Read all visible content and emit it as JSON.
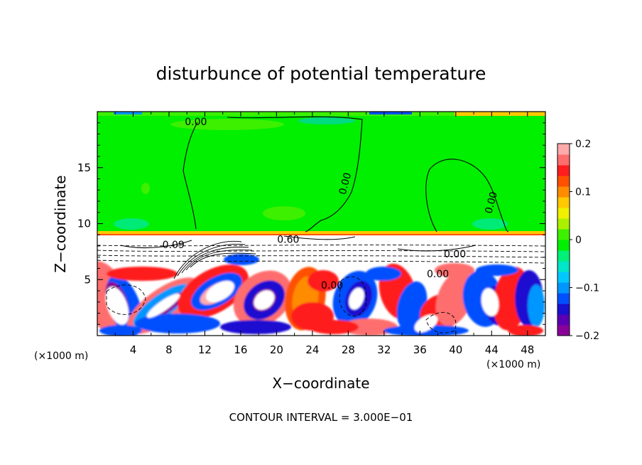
{
  "chart_data": {
    "type": "heatmap",
    "title": "disturbunce of potential temperature",
    "xlabel": "X−coordinate",
    "ylabel": "Z−coordinate",
    "x_unit": "(×1000 m)",
    "z_unit": "(×1000 m)",
    "xlim": [
      0,
      50
    ],
    "ylim": [
      0,
      20
    ],
    "x_ticks": [
      4,
      8,
      12,
      16,
      20,
      24,
      28,
      32,
      36,
      40,
      44,
      48
    ],
    "y_ticks": [
      5,
      10,
      15
    ],
    "contour_interval_label": "CONTOUR INTERVAL = 3.000E−01",
    "contour_labels": [
      {
        "text": "0.00",
        "x": 11.0,
        "z": 18.8
      },
      {
        "text": "0.00",
        "x": 28.0,
        "z": 13.5
      },
      {
        "text": "0.00",
        "x": 44.3,
        "z": 11.8
      },
      {
        "text": "0.60",
        "x": 21.3,
        "z": 8.3
      },
      {
        "text": "0.00",
        "x": 39.9,
        "z": 7.0
      },
      {
        "text": "0.00",
        "x": 38.0,
        "z": 5.2
      },
      {
        "text": "0.00",
        "x": 26.2,
        "z": 4.2
      },
      {
        "text": "0.09",
        "x": 8.5,
        "z": 7.8
      }
    ],
    "colorbar": {
      "min": -0.2,
      "max": 0.2,
      "tick_labels": [
        "0.2",
        "0.1",
        "0",
        "−0.1",
        "−0.2"
      ],
      "tick_values": [
        0.2,
        0.1,
        0,
        -0.1,
        -0.2
      ],
      "colors": [
        "#8a009a",
        "#5a00b4",
        "#1a10d0",
        "#0050ff",
        "#0096ff",
        "#00c8ff",
        "#00e6c8",
        "#00f078",
        "#00f000",
        "#3cf000",
        "#aaf000",
        "#f0f000",
        "#ffc800",
        "#ff8c00",
        "#ff5000",
        "#ff1e1e",
        "#ff6e6e",
        "#ffaaaa"
      ]
    }
  }
}
